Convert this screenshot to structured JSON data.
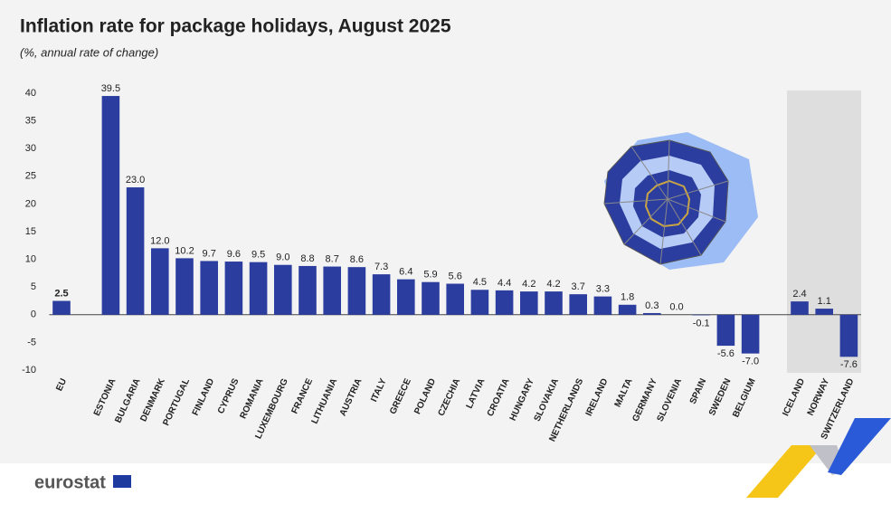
{
  "chart_data": {
    "type": "bar",
    "title": "Inflation rate for package holidays, August 2025",
    "subtitle": "(%, annual rate of change)",
    "categories": [
      "EU",
      null,
      "ESTONIA",
      "BULGARIA",
      "DENMARK",
      "PORTUGAL",
      "FINLAND",
      "CYPRUS",
      "ROMANIA",
      "LUXEMBOURG",
      "FRANCE",
      "LITHUANIA",
      "AUSTRIA",
      "ITALY",
      "GREECE",
      "POLAND",
      "CZECHIA",
      "LATVIA",
      "CROATIA",
      "HUNGARY",
      "SLOVAKIA",
      "NETHERLANDS",
      "IRELAND",
      "MALTA",
      "GERMANY",
      "SLOVENIA",
      "SPAIN",
      "SWEDEN",
      "BELGIUM",
      null,
      "ICELAND",
      "NORWAY",
      "SWITZERLAND"
    ],
    "values": [
      2.5,
      null,
      39.5,
      23.0,
      12.0,
      10.2,
      9.7,
      9.6,
      9.5,
      9.0,
      8.8,
      8.7,
      8.6,
      7.3,
      6.4,
      5.9,
      5.6,
      4.5,
      4.4,
      4.2,
      4.2,
      3.7,
      3.3,
      1.8,
      0.3,
      0.0,
      -0.1,
      -5.6,
      -7.0,
      null,
      2.4,
      1.1,
      -7.6
    ],
    "value_labels": [
      "2.5",
      null,
      "39.5",
      "23.0",
      "12.0",
      "10.2",
      "9.7",
      "9.6",
      "9.5",
      "9.0",
      "8.8",
      "8.7",
      "8.6",
      "7.3",
      "6.4",
      "5.9",
      "5.6",
      "4.5",
      "4.4",
      "4.2",
      "4.2",
      "3.7",
      "3.3",
      "1.8",
      "0.3",
      "0.0",
      "-0.1",
      "-5.6",
      "-7.0",
      null,
      "2.4",
      "1.1",
      "-7.6"
    ],
    "color": "#2b3d9f",
    "ylim": [
      -10,
      40
    ],
    "yticks": [
      -10,
      -5,
      0,
      5,
      10,
      15,
      20,
      25,
      30,
      35,
      40
    ],
    "grid": false
  },
  "logo": "eurostat"
}
